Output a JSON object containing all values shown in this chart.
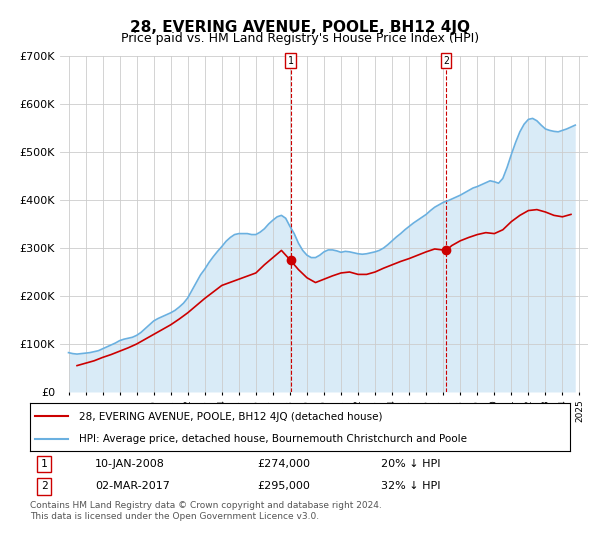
{
  "title": "28, EVERING AVENUE, POOLE, BH12 4JQ",
  "subtitle": "Price paid vs. HM Land Registry's House Price Index (HPI)",
  "title_fontsize": 11,
  "subtitle_fontsize": 9,
  "ylim": [
    0,
    700000
  ],
  "yticks": [
    0,
    100000,
    200000,
    300000,
    400000,
    500000,
    600000,
    700000
  ],
  "ytick_labels": [
    "£0",
    "£100K",
    "£200K",
    "£300K",
    "£400K",
    "£500K",
    "£600K",
    "£700K"
  ],
  "xlim_start": 1994.5,
  "xlim_end": 2025.5,
  "hpi_color": "#6ab0e0",
  "price_color": "#cc0000",
  "annotation_color": "#cc0000",
  "grid_color": "#cccccc",
  "bg_color": "#ffffff",
  "legend_box_color": "#000000",
  "sale1_date": "10-JAN-2008",
  "sale1_price": 274000,
  "sale1_pct": "20% ↓ HPI",
  "sale1_label": "1",
  "sale1_x": 2008.04,
  "sale2_date": "02-MAR-2017",
  "sale2_price": 295000,
  "sale2_label": "2",
  "sale2_x": 2017.17,
  "sale2_pct": "32% ↓ HPI",
  "footnote": "Contains HM Land Registry data © Crown copyright and database right 2024.\nThis data is licensed under the Open Government Licence v3.0.",
  "legend_line1": "28, EVERING AVENUE, POOLE, BH12 4JQ (detached house)",
  "legend_line2": "HPI: Average price, detached house, Bournemouth Christchurch and Poole",
  "hpi_years": [
    1995.0,
    1995.25,
    1995.5,
    1995.75,
    1996.0,
    1996.25,
    1996.5,
    1996.75,
    1997.0,
    1997.25,
    1997.5,
    1997.75,
    1998.0,
    1998.25,
    1998.5,
    1998.75,
    1999.0,
    1999.25,
    1999.5,
    1999.75,
    2000.0,
    2000.25,
    2000.5,
    2000.75,
    2001.0,
    2001.25,
    2001.5,
    2001.75,
    2002.0,
    2002.25,
    2002.5,
    2002.75,
    2003.0,
    2003.25,
    2003.5,
    2003.75,
    2004.0,
    2004.25,
    2004.5,
    2004.75,
    2005.0,
    2005.25,
    2005.5,
    2005.75,
    2006.0,
    2006.25,
    2006.5,
    2006.75,
    2007.0,
    2007.25,
    2007.5,
    2007.75,
    2008.0,
    2008.25,
    2008.5,
    2008.75,
    2009.0,
    2009.25,
    2009.5,
    2009.75,
    2010.0,
    2010.25,
    2010.5,
    2010.75,
    2011.0,
    2011.25,
    2011.5,
    2011.75,
    2012.0,
    2012.25,
    2012.5,
    2012.75,
    2013.0,
    2013.25,
    2013.5,
    2013.75,
    2014.0,
    2014.25,
    2014.5,
    2014.75,
    2015.0,
    2015.25,
    2015.5,
    2015.75,
    2016.0,
    2016.25,
    2016.5,
    2016.75,
    2017.0,
    2017.25,
    2017.5,
    2017.75,
    2018.0,
    2018.25,
    2018.5,
    2018.75,
    2019.0,
    2019.25,
    2019.5,
    2019.75,
    2020.0,
    2020.25,
    2020.5,
    2020.75,
    2021.0,
    2021.25,
    2021.5,
    2021.75,
    2022.0,
    2022.25,
    2022.5,
    2022.75,
    2023.0,
    2023.25,
    2023.5,
    2023.75,
    2024.0,
    2024.25,
    2024.5,
    2024.75
  ],
  "hpi_values": [
    82000,
    80000,
    79000,
    80000,
    81000,
    82000,
    84000,
    86000,
    90000,
    94000,
    98000,
    102000,
    107000,
    110000,
    112000,
    114000,
    118000,
    124000,
    132000,
    140000,
    148000,
    153000,
    157000,
    161000,
    165000,
    170000,
    177000,
    185000,
    196000,
    212000,
    228000,
    244000,
    256000,
    270000,
    282000,
    293000,
    303000,
    314000,
    322000,
    328000,
    330000,
    330000,
    330000,
    328000,
    328000,
    333000,
    340000,
    350000,
    358000,
    365000,
    368000,
    362000,
    345000,
    330000,
    310000,
    295000,
    285000,
    280000,
    280000,
    285000,
    292000,
    296000,
    296000,
    294000,
    291000,
    293000,
    292000,
    290000,
    288000,
    287000,
    288000,
    290000,
    292000,
    295000,
    300000,
    307000,
    315000,
    323000,
    330000,
    338000,
    345000,
    352000,
    358000,
    364000,
    370000,
    378000,
    385000,
    390000,
    395000,
    398000,
    402000,
    406000,
    410000,
    415000,
    420000,
    425000,
    428000,
    432000,
    436000,
    440000,
    438000,
    435000,
    445000,
    468000,
    495000,
    520000,
    542000,
    558000,
    568000,
    570000,
    565000,
    556000,
    548000,
    545000,
    543000,
    542000,
    545000,
    548000,
    552000,
    556000
  ],
  "price_years": [
    1995.5,
    1996.0,
    1996.5,
    1997.0,
    1997.5,
    1998.0,
    1998.5,
    1999.0,
    1999.5,
    2000.0,
    2000.5,
    2001.0,
    2001.5,
    2002.0,
    2003.0,
    2004.0,
    2005.0,
    2006.0,
    2006.5,
    2007.0,
    2007.5,
    2008.04,
    2008.5,
    2009.0,
    2009.5,
    2010.0,
    2010.5,
    2011.0,
    2011.5,
    2012.0,
    2012.5,
    2013.0,
    2013.5,
    2014.0,
    2014.5,
    2015.0,
    2015.5,
    2016.0,
    2016.5,
    2017.17,
    2017.5,
    2018.0,
    2018.5,
    2019.0,
    2019.5,
    2020.0,
    2020.5,
    2021.0,
    2021.5,
    2022.0,
    2022.5,
    2023.0,
    2023.5,
    2024.0,
    2024.5
  ],
  "price_values": [
    55000,
    60000,
    65000,
    72000,
    78000,
    85000,
    92000,
    100000,
    110000,
    120000,
    130000,
    140000,
    152000,
    165000,
    195000,
    222000,
    235000,
    248000,
    265000,
    280000,
    295000,
    274000,
    255000,
    238000,
    228000,
    235000,
    242000,
    248000,
    250000,
    245000,
    245000,
    250000,
    258000,
    265000,
    272000,
    278000,
    285000,
    292000,
    298000,
    295000,
    305000,
    315000,
    322000,
    328000,
    332000,
    330000,
    338000,
    355000,
    368000,
    378000,
    380000,
    375000,
    368000,
    365000,
    370000
  ]
}
